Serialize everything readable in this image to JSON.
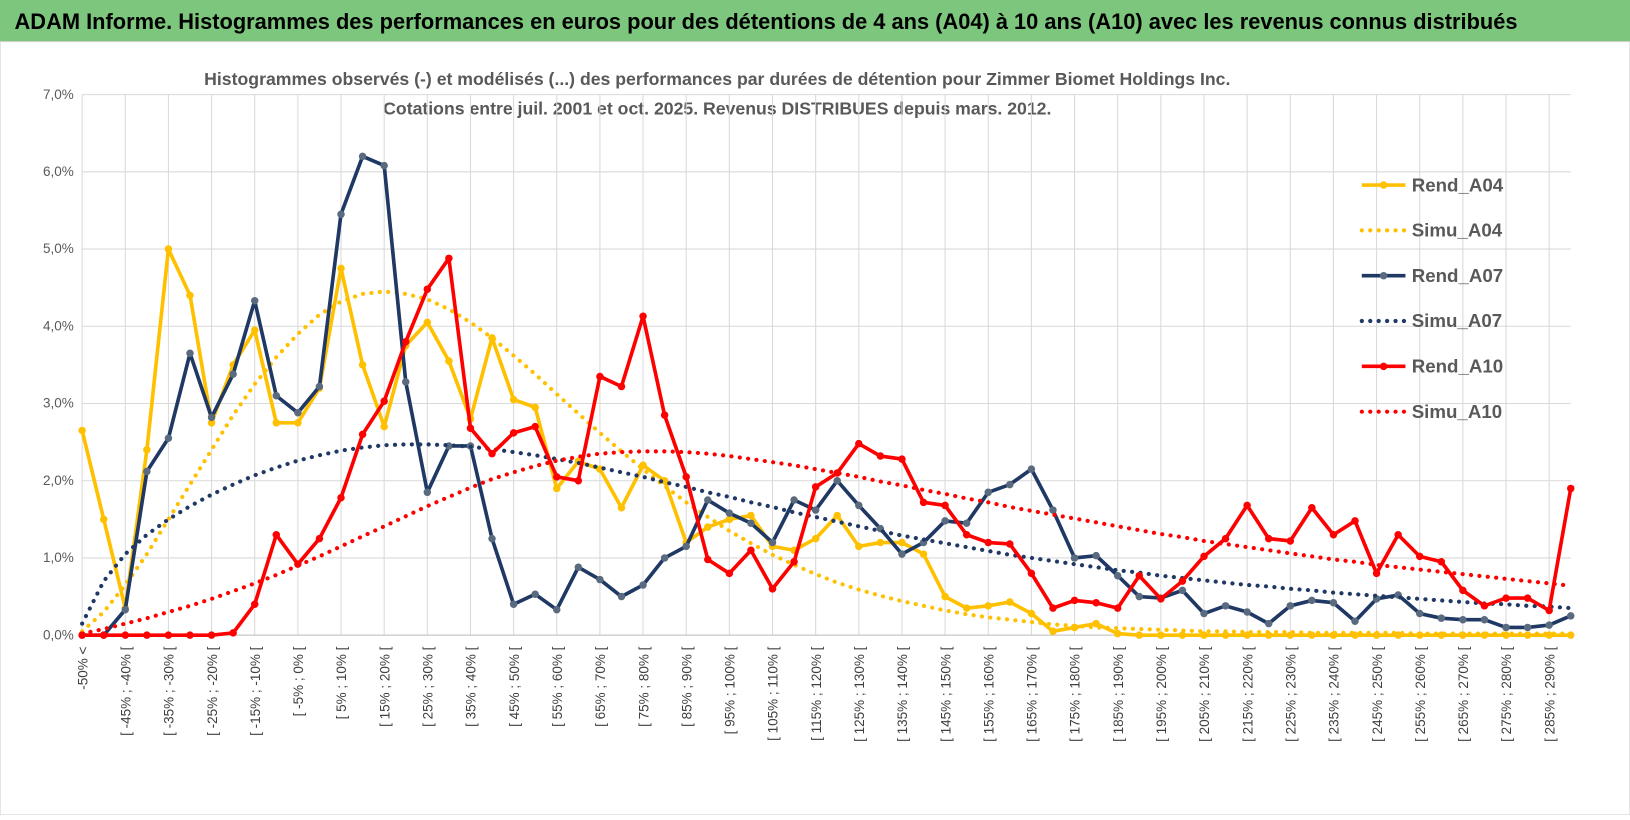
{
  "header": {
    "title": "ADAM Informe. Histogrammes des performances en euros pour des détentions de 4 ans (A04) à 10 ans (A10) avec les revenus connus distribués"
  },
  "chart_data": {
    "type": "line",
    "title": "Histogrammes observés (-) et modélisés (...) des performances par durées de détention pour Zimmer Biomet Holdings Inc.",
    "subtitle": "Cotations entre juil. 2001 et oct. 2025. Revenus DISTRIBUES depuis mars. 2012.",
    "categories": [
      "-50% <",
      null,
      "[ -45% ; -40% [",
      null,
      "[ -35% ; -30% [",
      null,
      "[ -25% ; -20% [",
      null,
      "[ -15% ; -10% [",
      null,
      "[ -5% ; 0% [",
      null,
      "[ 5% ; 10% [",
      null,
      "[ 15% ; 20% [",
      null,
      "[ 25% ; 30% [",
      null,
      "[ 35% ; 40% [",
      null,
      "[ 45% ; 50% [",
      null,
      "[ 55% ; 60% [",
      null,
      "[ 65% ; 70% [",
      null,
      "[ 75% ; 80% [",
      null,
      "[ 85% ; 90% [",
      null,
      "[ 95% ; 100% [",
      null,
      "[ 105% ; 110% [",
      null,
      "[ 115% ; 120% [",
      null,
      "[ 125% ; 130% [",
      null,
      "[ 135% ; 140% [",
      null,
      "[ 145% ; 150% [",
      null,
      "[ 155% ; 160% [",
      null,
      "[ 165% ; 170% [",
      null,
      "[ 175% ; 180% [",
      null,
      "[ 185% ; 190% [",
      null,
      "[ 195% ; 200% [",
      null,
      "[ 205% ; 210% [",
      null,
      "[ 215% ; 220% [",
      null,
      "[ 225% ; 230% [",
      null,
      "[ 235% ; 240% [",
      null,
      "[ 245% ; 250% [",
      null,
      "[ 255% ; 260% [",
      null,
      "[ 265% ; 270% [",
      null,
      "[ 275% ; 280% [",
      null,
      "[ 285% ; 290% [",
      null
    ],
    "series": [
      {
        "name": "Rend_A04",
        "color": "#ffc000",
        "dotted": false,
        "values": [
          2.65,
          1.5,
          0.35,
          2.4,
          5.0,
          4.4,
          2.75,
          3.5,
          3.95,
          2.75,
          2.75,
          3.2,
          4.75,
          3.5,
          2.7,
          3.75,
          4.05,
          3.55,
          2.8,
          3.85,
          3.05,
          2.95,
          1.9,
          2.25,
          2.15,
          1.65,
          2.2,
          2.0,
          1.2,
          1.4,
          1.5,
          1.55,
          1.15,
          1.1,
          1.25,
          1.55,
          1.15,
          1.2,
          1.2,
          1.05,
          0.5,
          0.35,
          0.38,
          0.43,
          0.28,
          0.05,
          0.1,
          0.15,
          0.02,
          0,
          0,
          0,
          0,
          0,
          0,
          0,
          0,
          0,
          0,
          0,
          0,
          0,
          0,
          0,
          0,
          0,
          0,
          0,
          0,
          0
        ]
      },
      {
        "name": "Simu_A04",
        "color": "#ffc000",
        "dotted": true,
        "values": [
          0.05,
          0.3,
          0.65,
          1.05,
          1.5,
          1.95,
          2.4,
          2.85,
          3.25,
          3.6,
          3.9,
          4.15,
          4.32,
          4.42,
          4.45,
          4.42,
          4.35,
          4.22,
          4.05,
          3.85,
          3.62,
          3.38,
          3.12,
          2.87,
          2.62,
          2.38,
          2.15,
          1.93,
          1.72,
          1.53,
          1.35,
          1.19,
          1.04,
          0.91,
          0.79,
          0.68,
          0.59,
          0.51,
          0.44,
          0.38,
          0.32,
          0.27,
          0.23,
          0.2,
          0.17,
          0.14,
          0.12,
          0.1,
          0.09,
          0.08,
          0.07,
          0.06,
          0.05,
          0.05,
          0.04,
          0.04,
          0.04,
          0.03,
          0.03,
          0.03,
          0.03,
          0.03,
          0.02,
          0.02,
          0.02,
          0.02,
          0.02,
          0.02,
          0.02,
          0.02
        ]
      },
      {
        "name": "Rend_A07",
        "color": "#1f3864",
        "dotted": false,
        "values": [
          0,
          0,
          0.33,
          2.12,
          2.55,
          3.65,
          2.82,
          3.38,
          4.33,
          3.1,
          2.88,
          3.22,
          5.45,
          6.2,
          6.08,
          3.28,
          1.85,
          2.45,
          2.45,
          1.25,
          0.4,
          0.53,
          0.33,
          0.88,
          0.72,
          0.5,
          0.65,
          1.0,
          1.15,
          1.75,
          1.58,
          1.45,
          1.2,
          1.75,
          1.62,
          2.0,
          1.68,
          1.38,
          1.05,
          1.2,
          1.48,
          1.45,
          1.85,
          1.95,
          2.15,
          1.62,
          1.0,
          1.03,
          0.77,
          0.5,
          0.48,
          0.58,
          0.28,
          0.38,
          0.3,
          0.15,
          0.38,
          0.45,
          0.42,
          0.18,
          0.47,
          0.52,
          0.28,
          0.22,
          0.2,
          0.2,
          0.1,
          0.1,
          0.13,
          0.25
        ]
      },
      {
        "name": "Simu_A07",
        "color": "#1f3864",
        "dotted": true,
        "values": [
          0.15,
          0.7,
          1.05,
          1.3,
          1.5,
          1.67,
          1.82,
          1.95,
          2.07,
          2.17,
          2.26,
          2.33,
          2.39,
          2.43,
          2.46,
          2.47,
          2.47,
          2.46,
          2.44,
          2.41,
          2.37,
          2.33,
          2.28,
          2.23,
          2.17,
          2.11,
          2.05,
          1.98,
          1.92,
          1.85,
          1.79,
          1.72,
          1.66,
          1.59,
          1.53,
          1.47,
          1.41,
          1.35,
          1.29,
          1.24,
          1.19,
          1.14,
          1.09,
          1.04,
          1.0,
          0.96,
          0.92,
          0.88,
          0.84,
          0.81,
          0.77,
          0.74,
          0.71,
          0.68,
          0.65,
          0.63,
          0.6,
          0.58,
          0.55,
          0.53,
          0.51,
          0.49,
          0.47,
          0.45,
          0.43,
          0.41,
          0.4,
          0.38,
          0.37,
          0.35
        ]
      },
      {
        "name": "Rend_A10",
        "color": "#ff0000",
        "dotted": false,
        "values": [
          0,
          0,
          0,
          0,
          0,
          0,
          0,
          0.03,
          0.4,
          1.3,
          0.92,
          1.25,
          1.78,
          2.6,
          3.03,
          3.8,
          4.48,
          4.88,
          2.68,
          2.35,
          2.62,
          2.7,
          2.05,
          2.0,
          3.35,
          3.22,
          4.13,
          2.85,
          2.05,
          0.98,
          0.8,
          1.1,
          0.6,
          0.95,
          1.92,
          2.1,
          2.48,
          2.32,
          2.28,
          1.72,
          1.68,
          1.3,
          1.2,
          1.18,
          0.8,
          0.35,
          0.45,
          0.42,
          0.35,
          0.77,
          0.47,
          0.7,
          1.02,
          1.25,
          1.68,
          1.25,
          1.22,
          1.65,
          1.3,
          1.48,
          0.8,
          1.3,
          1.02,
          0.95,
          0.58,
          0.38,
          0.48,
          0.48,
          0.32,
          1.9
        ]
      },
      {
        "name": "Simu_A10",
        "color": "#ff0000",
        "dotted": true,
        "values": [
          0.02,
          0.08,
          0.15,
          0.22,
          0.3,
          0.38,
          0.47,
          0.57,
          0.67,
          0.78,
          0.9,
          1.02,
          1.15,
          1.28,
          1.41,
          1.54,
          1.67,
          1.79,
          1.91,
          2.02,
          2.11,
          2.19,
          2.26,
          2.31,
          2.35,
          2.37,
          2.38,
          2.38,
          2.37,
          2.35,
          2.32,
          2.28,
          2.24,
          2.2,
          2.15,
          2.1,
          2.05,
          1.99,
          1.94,
          1.88,
          1.83,
          1.77,
          1.72,
          1.66,
          1.61,
          1.56,
          1.51,
          1.46,
          1.41,
          1.36,
          1.31,
          1.27,
          1.22,
          1.18,
          1.14,
          1.1,
          1.06,
          1.02,
          0.98,
          0.95,
          0.91,
          0.88,
          0.85,
          0.82,
          0.79,
          0.76,
          0.73,
          0.7,
          0.67,
          0.64
        ]
      }
    ],
    "ylim": [
      0,
      7
    ],
    "yticks": [
      {
        "value": 0,
        "label": "0,0%"
      },
      {
        "value": 1,
        "label": "1,0%"
      },
      {
        "value": 2,
        "label": "2,0%"
      },
      {
        "value": 3,
        "label": "3,0%"
      },
      {
        "value": 4,
        "label": "4,0%"
      },
      {
        "value": 5,
        "label": "5,0%"
      },
      {
        "value": 6,
        "label": "6,0%"
      },
      {
        "value": 7,
        "label": "7,0%"
      }
    ],
    "grid": true,
    "legend": "right"
  }
}
